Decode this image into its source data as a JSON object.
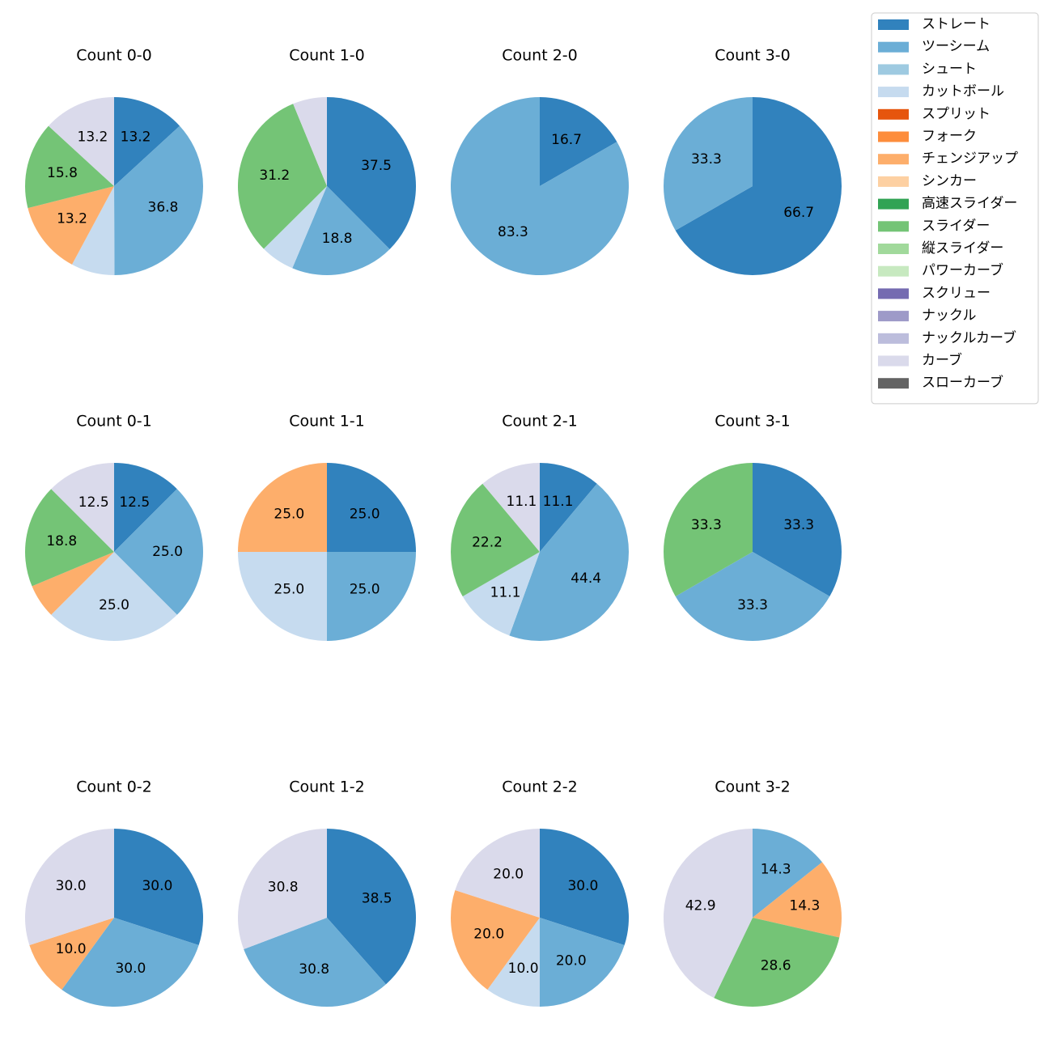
{
  "chart_data": {
    "type": "pie",
    "legend": {
      "placement": "top-right",
      "entries": [
        {
          "name": "ストレート",
          "color": "#3182bd"
        },
        {
          "name": "ツーシーム",
          "color": "#6baed6"
        },
        {
          "name": "シュート",
          "color": "#9ecae1"
        },
        {
          "name": "カットボール",
          "color": "#c6dbef"
        },
        {
          "name": "スプリット",
          "color": "#e6550d"
        },
        {
          "name": "フォーク",
          "color": "#fd8d3c"
        },
        {
          "name": "チェンジアップ",
          "color": "#fdae6b"
        },
        {
          "name": "シンカー",
          "color": "#fdd0a2"
        },
        {
          "name": "高速スライダー",
          "color": "#31a354"
        },
        {
          "name": "スライダー",
          "color": "#74c476"
        },
        {
          "name": "縦スライダー",
          "color": "#a1d99b"
        },
        {
          "name": "パワーカーブ",
          "color": "#c7e9c0"
        },
        {
          "name": "スクリュー",
          "color": "#756bb1"
        },
        {
          "name": "ナックル",
          "color": "#9e9ac8"
        },
        {
          "name": "ナックルカーブ",
          "color": "#bcbddc"
        },
        {
          "name": "カーブ",
          "color": "#dadaeb"
        },
        {
          "name": "スローカーブ",
          "color": "#636363"
        }
      ]
    },
    "charts": [
      {
        "title": "Count 0-0",
        "slices": [
          {
            "pitch": "ストレート",
            "value": 13.2,
            "label": "13.2"
          },
          {
            "pitch": "ツーシーム",
            "value": 36.8,
            "label": "36.8"
          },
          {
            "pitch": "カットボール",
            "value": 7.9,
            "label": ""
          },
          {
            "pitch": "チェンジアップ",
            "value": 13.2,
            "label": "13.2"
          },
          {
            "pitch": "スライダー",
            "value": 15.8,
            "label": "15.8"
          },
          {
            "pitch": "カーブ",
            "value": 13.2,
            "label": "13.2"
          }
        ]
      },
      {
        "title": "Count 1-0",
        "slices": [
          {
            "pitch": "ストレート",
            "value": 37.5,
            "label": "37.5"
          },
          {
            "pitch": "ツーシーム",
            "value": 18.8,
            "label": "18.8"
          },
          {
            "pitch": "カットボール",
            "value": 6.2,
            "label": ""
          },
          {
            "pitch": "スライダー",
            "value": 31.2,
            "label": "31.2"
          },
          {
            "pitch": "カーブ",
            "value": 6.2,
            "label": ""
          }
        ]
      },
      {
        "title": "Count 2-0",
        "slices": [
          {
            "pitch": "ストレート",
            "value": 16.7,
            "label": "16.7"
          },
          {
            "pitch": "ツーシーム",
            "value": 83.3,
            "label": "83.3"
          }
        ]
      },
      {
        "title": "Count 3-0",
        "slices": [
          {
            "pitch": "ストレート",
            "value": 66.7,
            "label": "66.7"
          },
          {
            "pitch": "ツーシーム",
            "value": 33.3,
            "label": "33.3"
          }
        ]
      },
      {
        "title": "Count 0-1",
        "slices": [
          {
            "pitch": "ストレート",
            "value": 12.5,
            "label": "12.5"
          },
          {
            "pitch": "ツーシーム",
            "value": 25.0,
            "label": "25.0"
          },
          {
            "pitch": "カットボール",
            "value": 25.0,
            "label": "25.0"
          },
          {
            "pitch": "チェンジアップ",
            "value": 6.2,
            "label": ""
          },
          {
            "pitch": "スライダー",
            "value": 18.8,
            "label": "18.8"
          },
          {
            "pitch": "カーブ",
            "value": 12.5,
            "label": "12.5"
          }
        ]
      },
      {
        "title": "Count 1-1",
        "slices": [
          {
            "pitch": "ストレート",
            "value": 25.0,
            "label": "25.0"
          },
          {
            "pitch": "ツーシーム",
            "value": 25.0,
            "label": "25.0"
          },
          {
            "pitch": "カットボール",
            "value": 25.0,
            "label": "25.0"
          },
          {
            "pitch": "チェンジアップ",
            "value": 25.0,
            "label": "25.0"
          }
        ]
      },
      {
        "title": "Count 2-1",
        "slices": [
          {
            "pitch": "ストレート",
            "value": 11.1,
            "label": "11.1"
          },
          {
            "pitch": "ツーシーム",
            "value": 44.4,
            "label": "44.4"
          },
          {
            "pitch": "カットボール",
            "value": 11.1,
            "label": "11.1"
          },
          {
            "pitch": "スライダー",
            "value": 22.2,
            "label": "22.2"
          },
          {
            "pitch": "カーブ",
            "value": 11.1,
            "label": "11.1"
          }
        ]
      },
      {
        "title": "Count 3-1",
        "slices": [
          {
            "pitch": "ストレート",
            "value": 33.3,
            "label": "33.3"
          },
          {
            "pitch": "ツーシーム",
            "value": 33.3,
            "label": "33.3"
          },
          {
            "pitch": "スライダー",
            "value": 33.3,
            "label": "33.3"
          }
        ]
      },
      {
        "title": "Count 0-2",
        "slices": [
          {
            "pitch": "ストレート",
            "value": 30.0,
            "label": "30.0"
          },
          {
            "pitch": "ツーシーム",
            "value": 30.0,
            "label": "30.0"
          },
          {
            "pitch": "チェンジアップ",
            "value": 10.0,
            "label": "10.0"
          },
          {
            "pitch": "カーブ",
            "value": 30.0,
            "label": "30.0"
          }
        ]
      },
      {
        "title": "Count 1-2",
        "slices": [
          {
            "pitch": "ストレート",
            "value": 38.5,
            "label": "38.5"
          },
          {
            "pitch": "ツーシーム",
            "value": 30.8,
            "label": "30.8"
          },
          {
            "pitch": "カーブ",
            "value": 30.8,
            "label": "30.8"
          }
        ]
      },
      {
        "title": "Count 2-2",
        "slices": [
          {
            "pitch": "ストレート",
            "value": 30.0,
            "label": "30.0"
          },
          {
            "pitch": "ツーシーム",
            "value": 20.0,
            "label": "20.0"
          },
          {
            "pitch": "カットボール",
            "value": 10.0,
            "label": "10.0"
          },
          {
            "pitch": "チェンジアップ",
            "value": 20.0,
            "label": "20.0"
          },
          {
            "pitch": "カーブ",
            "value": 20.0,
            "label": "20.0"
          }
        ]
      },
      {
        "title": "Count 3-2",
        "slices": [
          {
            "pitch": "ツーシーム",
            "value": 14.3,
            "label": "14.3"
          },
          {
            "pitch": "チェンジアップ",
            "value": 14.3,
            "label": "14.3"
          },
          {
            "pitch": "スライダー",
            "value": 28.6,
            "label": "28.6"
          },
          {
            "pitch": "カーブ",
            "value": 42.9,
            "label": "42.9"
          }
        ]
      }
    ]
  }
}
